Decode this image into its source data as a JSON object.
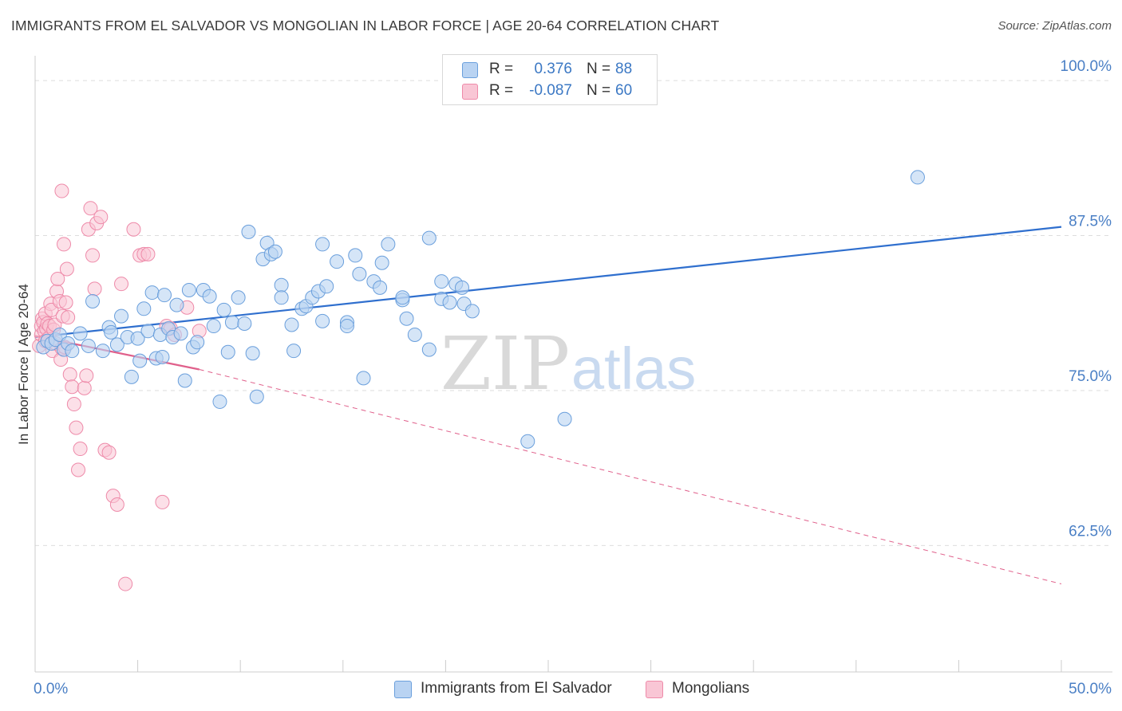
{
  "header": {
    "title": "IMMIGRANTS FROM EL SALVADOR VS MONGOLIAN IN LABOR FORCE | AGE 20-64 CORRELATION CHART",
    "source": "Source: ZipAtlas.com"
  },
  "legend_top": {
    "rows": [
      {
        "r_label": "R =",
        "r_value": "0.376",
        "n_label": "N =",
        "n_value": "88"
      },
      {
        "r_label": "R =",
        "r_value": "-0.087",
        "n_label": "N =",
        "n_value": "60"
      }
    ]
  },
  "legend_bottom": {
    "items": [
      {
        "label": "Immigrants from El Salvador"
      },
      {
        "label": "Mongolians"
      }
    ]
  },
  "watermark": {
    "zip": "ZIP",
    "atlas": "atlas"
  },
  "colors": {
    "blue_fill": "#b9d3f2",
    "blue_stroke": "#6a9fdc",
    "blue_line": "#2f6fce",
    "pink_fill": "#f9c6d5",
    "pink_stroke": "#ee8aa9",
    "pink_line": "#e0608b",
    "tick_label": "#4a7fc5",
    "grid": "#dddddd"
  },
  "chart_data": {
    "type": "scatter",
    "title": "IMMIGRANTS FROM EL SALVADOR VS MONGOLIAN IN LABOR FORCE | AGE 20-64 CORRELATION CHART",
    "xlabel": "",
    "ylabel": "In Labor Force | Age 20-64",
    "xlim": [
      0,
      50
    ],
    "ylim": [
      52.3,
      102
    ],
    "x_tick_labels": [
      "0.0%",
      "50.0%"
    ],
    "y_ticks": [
      62.5,
      75.0,
      87.5,
      100.0
    ],
    "y_tick_labels": [
      "62.5%",
      "75.0%",
      "87.5%",
      "100.0%"
    ],
    "grid": true,
    "legend_position": "top-center",
    "series": [
      {
        "name": "Immigrants from El Salvador",
        "r": 0.376,
        "n": 88,
        "trend": {
          "x0": 0,
          "y0": 79.3,
          "x1": 50,
          "y1": 88.2,
          "style": "solid"
        },
        "points": [
          [
            0.4,
            78.5
          ],
          [
            0.6,
            79.0
          ],
          [
            0.8,
            78.8
          ],
          [
            1.0,
            79.1
          ],
          [
            1.2,
            79.5
          ],
          [
            1.4,
            78.3
          ],
          [
            1.6,
            78.8
          ],
          [
            1.8,
            78.2
          ],
          [
            2.2,
            79.6
          ],
          [
            2.6,
            78.6
          ],
          [
            2.8,
            82.2
          ],
          [
            3.3,
            78.2
          ],
          [
            3.6,
            80.1
          ],
          [
            3.7,
            79.7
          ],
          [
            4.0,
            78.7
          ],
          [
            4.2,
            81.0
          ],
          [
            4.5,
            79.3
          ],
          [
            4.7,
            76.1
          ],
          [
            5.0,
            79.2
          ],
          [
            5.1,
            77.4
          ],
          [
            5.3,
            81.6
          ],
          [
            5.5,
            79.8
          ],
          [
            5.7,
            82.9
          ],
          [
            5.9,
            77.6
          ],
          [
            6.1,
            79.5
          ],
          [
            6.3,
            82.7
          ],
          [
            6.5,
            80.0
          ],
          [
            6.7,
            79.3
          ],
          [
            6.9,
            81.9
          ],
          [
            7.1,
            79.6
          ],
          [
            7.3,
            75.8
          ],
          [
            7.5,
            83.1
          ],
          [
            7.7,
            78.5
          ],
          [
            7.9,
            78.9
          ],
          [
            8.2,
            83.1
          ],
          [
            8.5,
            82.6
          ],
          [
            8.7,
            80.2
          ],
          [
            9.0,
            74.1
          ],
          [
            9.2,
            81.5
          ],
          [
            9.4,
            78.1
          ],
          [
            9.6,
            80.5
          ],
          [
            9.9,
            82.5
          ],
          [
            10.2,
            80.4
          ],
          [
            10.4,
            87.8
          ],
          [
            10.6,
            78.0
          ],
          [
            10.8,
            74.5
          ],
          [
            11.1,
            85.6
          ],
          [
            11.3,
            86.9
          ],
          [
            11.5,
            86.0
          ],
          [
            11.7,
            86.2
          ],
          [
            12.0,
            83.5
          ],
          [
            12.0,
            82.5
          ],
          [
            12.5,
            80.3
          ],
          [
            12.6,
            78.2
          ],
          [
            13.0,
            81.6
          ],
          [
            13.2,
            81.8
          ],
          [
            13.5,
            82.5
          ],
          [
            13.8,
            83.0
          ],
          [
            14.0,
            80.6
          ],
          [
            14.0,
            86.8
          ],
          [
            14.2,
            83.4
          ],
          [
            14.7,
            85.4
          ],
          [
            15.2,
            80.5
          ],
          [
            15.2,
            80.2
          ],
          [
            15.6,
            85.9
          ],
          [
            15.8,
            84.4
          ],
          [
            16.0,
            76.0
          ],
          [
            16.5,
            83.8
          ],
          [
            16.8,
            83.3
          ],
          [
            16.9,
            85.3
          ],
          [
            17.2,
            86.8
          ],
          [
            17.9,
            82.3
          ],
          [
            17.9,
            82.5
          ],
          [
            18.1,
            80.8
          ],
          [
            18.5,
            79.5
          ],
          [
            19.2,
            78.3
          ],
          [
            19.2,
            87.3
          ],
          [
            19.8,
            83.8
          ],
          [
            19.8,
            82.4
          ],
          [
            20.2,
            82.1
          ],
          [
            20.5,
            83.6
          ],
          [
            20.8,
            83.3
          ],
          [
            20.9,
            82.0
          ],
          [
            21.3,
            81.4
          ],
          [
            24.0,
            70.9
          ],
          [
            25.8,
            72.7
          ],
          [
            43.0,
            92.2
          ],
          [
            6.2,
            77.7
          ]
        ]
      },
      {
        "name": "Mongolians",
        "r": -0.087,
        "n": 60,
        "trend": {
          "x0": 0,
          "y0": 79.4,
          "x1": 8,
          "y1": 76.7,
          "style": "solid"
        },
        "trend_dashed": {
          "x0": 8,
          "y0": 76.7,
          "x1": 50,
          "y1": 59.4,
          "style": "dashed"
        },
        "points": [
          [
            0.2,
            78.6
          ],
          [
            0.3,
            79.5
          ],
          [
            0.3,
            80.2
          ],
          [
            0.35,
            80.8
          ],
          [
            0.4,
            80.5
          ],
          [
            0.45,
            79.8
          ],
          [
            0.5,
            81.2
          ],
          [
            0.5,
            79.0
          ],
          [
            0.55,
            80.0
          ],
          [
            0.6,
            80.4
          ],
          [
            0.65,
            79.2
          ],
          [
            0.7,
            80.2
          ],
          [
            0.75,
            82.0
          ],
          [
            0.8,
            81.5
          ],
          [
            0.85,
            78.2
          ],
          [
            0.9,
            79.9
          ],
          [
            0.95,
            80.3
          ],
          [
            1.0,
            78.8
          ],
          [
            1.05,
            83.0
          ],
          [
            1.1,
            84.0
          ],
          [
            1.2,
            82.2
          ],
          [
            1.25,
            77.5
          ],
          [
            1.3,
            78.4
          ],
          [
            1.35,
            81.0
          ],
          [
            1.4,
            86.8
          ],
          [
            1.45,
            78.5
          ],
          [
            1.5,
            82.1
          ],
          [
            1.55,
            84.8
          ],
          [
            1.6,
            80.9
          ],
          [
            1.7,
            76.3
          ],
          [
            1.8,
            75.3
          ],
          [
            1.9,
            73.9
          ],
          [
            2.0,
            72.0
          ],
          [
            2.1,
            68.6
          ],
          [
            2.2,
            70.3
          ],
          [
            2.4,
            75.2
          ],
          [
            2.5,
            76.2
          ],
          [
            2.6,
            88.0
          ],
          [
            2.7,
            89.7
          ],
          [
            2.8,
            85.9
          ],
          [
            2.9,
            83.2
          ],
          [
            3.0,
            88.5
          ],
          [
            3.2,
            89.0
          ],
          [
            3.4,
            70.2
          ],
          [
            3.6,
            70.0
          ],
          [
            3.8,
            66.5
          ],
          [
            4.0,
            65.8
          ],
          [
            4.2,
            83.6
          ],
          [
            4.4,
            59.4
          ],
          [
            4.8,
            88.0
          ],
          [
            5.1,
            85.9
          ],
          [
            5.3,
            86.0
          ],
          [
            5.5,
            86.0
          ],
          [
            6.2,
            66.0
          ],
          [
            6.4,
            80.2
          ],
          [
            6.6,
            80.0
          ],
          [
            6.8,
            79.5
          ],
          [
            7.4,
            81.7
          ],
          [
            8.0,
            79.8
          ],
          [
            1.3,
            91.1
          ]
        ]
      }
    ]
  }
}
